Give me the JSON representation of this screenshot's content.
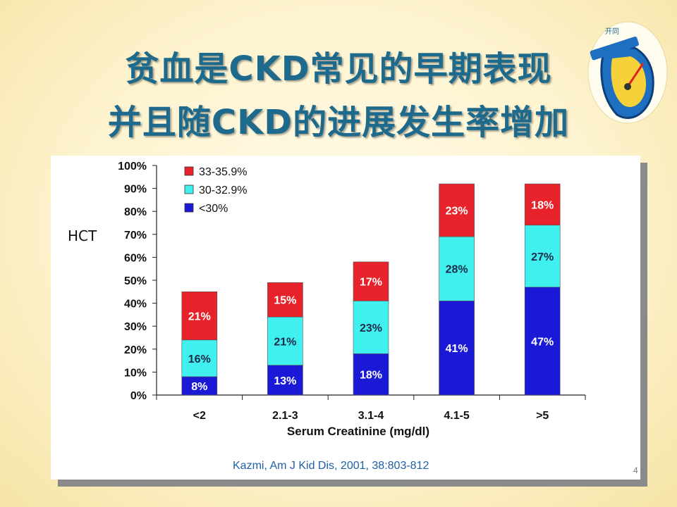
{
  "slide": {
    "title_line1": "贫血是CKD常见的早期表现",
    "title_line2": "并且随CKD的进展发生率增加",
    "hct_label": "HCT",
    "citation": "Kazmi, Am J Kid Dis, 2001, 38:803-812",
    "page_number": "4"
  },
  "logo": {
    "text": "开同",
    "icon": "gauge-logo-icon"
  },
  "chart_data": {
    "type": "bar",
    "stacked": true,
    "title": "",
    "xlabel": "Serum Creatinine (mg/dl)",
    "ylabel": "",
    "ylim": [
      0,
      100
    ],
    "yticks": [
      "0%",
      "10%",
      "20%",
      "30%",
      "40%",
      "50%",
      "60%",
      "70%",
      "80%",
      "90%",
      "100%"
    ],
    "categories": [
      "<2",
      "2.1-3",
      "3.1-4",
      "4.1-5",
      ">5"
    ],
    "series": [
      {
        "name": "<30%",
        "color": "#1a1ad6",
        "values": [
          8,
          13,
          18,
          41,
          47
        ],
        "labels": [
          "8%",
          "13%",
          "18%",
          "41%",
          "47%"
        ]
      },
      {
        "name": "30-32.9%",
        "color": "#3ff0ee",
        "values": [
          16,
          21,
          23,
          28,
          27
        ],
        "labels": [
          "16%",
          "21%",
          "23%",
          "28%",
          "27%"
        ]
      },
      {
        "name": "33-35.9%",
        "color": "#e8222a",
        "values": [
          21,
          15,
          17,
          23,
          18
        ],
        "labels": [
          "21%",
          "15%",
          "17%",
          "23%",
          "18%"
        ]
      }
    ],
    "legend": {
      "placement": "top-left",
      "entries": [
        {
          "label": "33-35.9%",
          "color": "#e8222a"
        },
        {
          "label": "30-32.9%",
          "color": "#3ff0ee"
        },
        {
          "label": "<30%",
          "color": "#1a1ad6"
        }
      ]
    },
    "grid": false
  }
}
